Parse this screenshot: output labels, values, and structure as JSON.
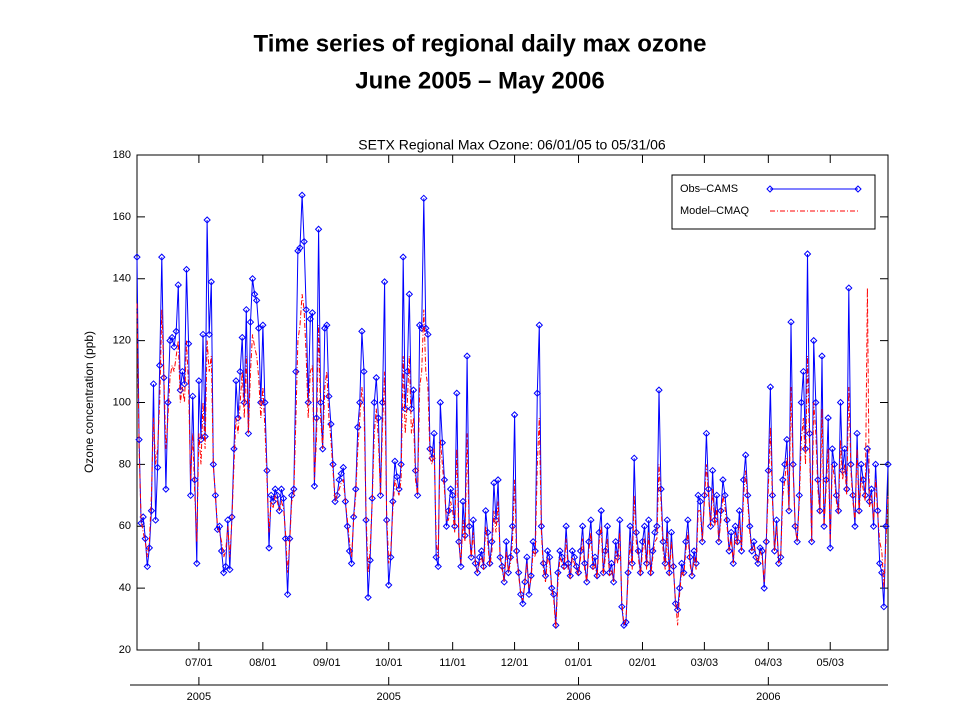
{
  "chart_data": {
    "type": "line",
    "title": "Time series of regional daily max ozone",
    "subtitle": "June 2005 – May 2006",
    "plot_title": "SETX Regional Max Ozone: 06/01/05 to 05/31/06",
    "ylabel": "Ozone concentration (ppb)",
    "ylim": [
      20,
      180
    ],
    "yticks": [
      20,
      40,
      60,
      80,
      100,
      120,
      140,
      160,
      180
    ],
    "xlim": [
      "2005-06-01",
      "2006-05-31"
    ],
    "xticks": [
      {
        "value": "2005-07-01",
        "label": "07/01"
      },
      {
        "value": "2005-08-01",
        "label": "08/01"
      },
      {
        "value": "2005-09-01",
        "label": "09/01"
      },
      {
        "value": "2005-10-01",
        "label": "10/01"
      },
      {
        "value": "2005-11-01",
        "label": "11/01"
      },
      {
        "value": "2005-12-01",
        "label": "12/01"
      },
      {
        "value": "2006-01-01",
        "label": "01/01"
      },
      {
        "value": "2006-02-01",
        "label": "02/01"
      },
      {
        "value": "2006-03-03",
        "label": "03/03"
      },
      {
        "value": "2006-04-03",
        "label": "04/03"
      },
      {
        "value": "2006-05-03",
        "label": "05/03"
      }
    ],
    "year_ticks": [
      {
        "value": "2005-07-01",
        "label": "2005"
      },
      {
        "value": "2005-10-01",
        "label": "2005"
      },
      {
        "value": "2006-01-01",
        "label": "2006"
      },
      {
        "value": "2006-04-03",
        "label": "2006"
      }
    ],
    "legend": "upper right",
    "x": [
      "2005-06-01",
      "2005-06-02",
      "2005-06-03",
      "2005-06-04",
      "2005-06-05",
      "2005-06-06",
      "2005-06-07",
      "2005-06-08",
      "2005-06-09",
      "2005-06-10",
      "2005-06-11",
      "2005-06-12",
      "2005-06-13",
      "2005-06-14",
      "2005-06-15",
      "2005-06-16",
      "2005-06-17",
      "2005-06-18",
      "2005-06-19",
      "2005-06-20",
      "2005-06-21",
      "2005-06-22",
      "2005-06-23",
      "2005-06-24",
      "2005-06-25",
      "2005-06-26",
      "2005-06-27",
      "2005-06-28",
      "2005-06-29",
      "2005-06-30",
      "2005-07-01",
      "2005-07-02",
      "2005-07-03",
      "2005-07-04",
      "2005-07-05",
      "2005-07-06",
      "2005-07-07",
      "2005-07-08",
      "2005-07-09",
      "2005-07-10",
      "2005-07-11",
      "2005-07-12",
      "2005-07-13",
      "2005-07-14",
      "2005-07-15",
      "2005-07-16",
      "2005-07-17",
      "2005-07-18",
      "2005-07-19",
      "2005-07-20",
      "2005-07-21",
      "2005-07-22",
      "2005-07-23",
      "2005-07-24",
      "2005-07-25",
      "2005-07-26",
      "2005-07-27",
      "2005-07-28",
      "2005-07-29",
      "2005-07-30",
      "2005-07-31",
      "2005-08-01",
      "2005-08-02",
      "2005-08-03",
      "2005-08-04",
      "2005-08-05",
      "2005-08-06",
      "2005-08-07",
      "2005-08-08",
      "2005-08-09",
      "2005-08-10",
      "2005-08-11",
      "2005-08-12",
      "2005-08-13",
      "2005-08-14",
      "2005-08-15",
      "2005-08-16",
      "2005-08-17",
      "2005-08-18",
      "2005-08-19",
      "2005-08-20",
      "2005-08-21",
      "2005-08-22",
      "2005-08-23",
      "2005-08-24",
      "2005-08-25",
      "2005-08-26",
      "2005-08-27",
      "2005-08-28",
      "2005-08-29",
      "2005-08-30",
      "2005-08-31",
      "2005-09-01",
      "2005-09-02",
      "2005-09-03",
      "2005-09-04",
      "2005-09-05",
      "2005-09-06",
      "2005-09-07",
      "2005-09-08",
      "2005-09-09",
      "2005-09-10",
      "2005-09-11",
      "2005-09-12",
      "2005-09-13",
      "2005-09-14",
      "2005-09-15",
      "2005-09-16",
      "2005-09-17",
      "2005-09-18",
      "2005-09-19",
      "2005-09-20",
      "2005-09-21",
      "2005-09-22",
      "2005-09-23",
      "2005-09-24",
      "2005-09-25",
      "2005-09-26",
      "2005-09-27",
      "2005-09-28",
      "2005-09-29",
      "2005-09-30",
      "2005-10-01",
      "2005-10-02",
      "2005-10-03",
      "2005-10-04",
      "2005-10-05",
      "2005-10-06",
      "2005-10-07",
      "2005-10-08",
      "2005-10-09",
      "2005-10-10",
      "2005-10-11",
      "2005-10-12",
      "2005-10-13",
      "2005-10-14",
      "2005-10-15",
      "2005-10-16",
      "2005-10-17",
      "2005-10-18",
      "2005-10-19",
      "2005-10-20",
      "2005-10-21",
      "2005-10-22",
      "2005-10-23",
      "2005-10-24",
      "2005-10-25",
      "2005-10-26",
      "2005-10-27",
      "2005-10-28",
      "2005-10-29",
      "2005-10-30",
      "2005-10-31",
      "2005-11-01",
      "2005-11-02",
      "2005-11-03",
      "2005-11-04",
      "2005-11-05",
      "2005-11-06",
      "2005-11-07",
      "2005-11-08",
      "2005-11-09",
      "2005-11-10",
      "2005-11-11",
      "2005-11-12",
      "2005-11-13",
      "2005-11-14",
      "2005-11-15",
      "2005-11-16",
      "2005-11-17",
      "2005-11-18",
      "2005-11-19",
      "2005-11-20",
      "2005-11-21",
      "2005-11-22",
      "2005-11-23",
      "2005-11-24",
      "2005-11-25",
      "2005-11-26",
      "2005-11-27",
      "2005-11-28",
      "2005-11-29",
      "2005-11-30",
      "2005-12-01",
      "2005-12-02",
      "2005-12-03",
      "2005-12-04",
      "2005-12-05",
      "2005-12-06",
      "2005-12-07",
      "2005-12-08",
      "2005-12-09",
      "2005-12-10",
      "2005-12-11",
      "2005-12-12",
      "2005-12-13",
      "2005-12-14",
      "2005-12-15",
      "2005-12-16",
      "2005-12-17",
      "2005-12-18",
      "2005-12-19",
      "2005-12-20",
      "2005-12-21",
      "2005-12-22",
      "2005-12-23",
      "2005-12-24",
      "2005-12-25",
      "2005-12-26",
      "2005-12-27",
      "2005-12-28",
      "2005-12-29",
      "2005-12-30",
      "2005-12-31",
      "2006-01-01",
      "2006-01-02",
      "2006-01-03",
      "2006-01-04",
      "2006-01-05",
      "2006-01-06",
      "2006-01-07",
      "2006-01-08",
      "2006-01-09",
      "2006-01-10",
      "2006-01-11",
      "2006-01-12",
      "2006-01-13",
      "2006-01-14",
      "2006-01-15",
      "2006-01-16",
      "2006-01-17",
      "2006-01-18",
      "2006-01-19",
      "2006-01-20",
      "2006-01-21",
      "2006-01-22",
      "2006-01-23",
      "2006-01-24",
      "2006-01-25",
      "2006-01-26",
      "2006-01-27",
      "2006-01-28",
      "2006-01-29",
      "2006-01-30",
      "2006-01-31",
      "2006-02-01",
      "2006-02-02",
      "2006-02-03",
      "2006-02-04",
      "2006-02-05",
      "2006-02-06",
      "2006-02-07",
      "2006-02-08",
      "2006-02-09",
      "2006-02-10",
      "2006-02-11",
      "2006-02-12",
      "2006-02-13",
      "2006-02-14",
      "2006-02-15",
      "2006-02-16",
      "2006-02-17",
      "2006-02-18",
      "2006-02-19",
      "2006-02-20",
      "2006-02-21",
      "2006-02-22",
      "2006-02-23",
      "2006-02-24",
      "2006-02-25",
      "2006-02-26",
      "2006-02-27",
      "2006-02-28",
      "2006-03-01",
      "2006-03-02",
      "2006-03-03",
      "2006-03-04",
      "2006-03-05",
      "2006-03-06",
      "2006-03-07",
      "2006-03-08",
      "2006-03-09",
      "2006-03-10",
      "2006-03-11",
      "2006-03-12",
      "2006-03-13",
      "2006-03-14",
      "2006-03-15",
      "2006-03-16",
      "2006-03-17",
      "2006-03-18",
      "2006-03-19",
      "2006-03-20",
      "2006-03-21",
      "2006-03-22",
      "2006-03-23",
      "2006-03-24",
      "2006-03-25",
      "2006-03-26",
      "2006-03-27",
      "2006-03-28",
      "2006-03-29",
      "2006-03-30",
      "2006-03-31",
      "2006-04-01",
      "2006-04-02",
      "2006-04-03",
      "2006-04-04",
      "2006-04-05",
      "2006-04-06",
      "2006-04-07",
      "2006-04-08",
      "2006-04-09",
      "2006-04-10",
      "2006-04-11",
      "2006-04-12",
      "2006-04-13",
      "2006-04-14",
      "2006-04-15",
      "2006-04-16",
      "2006-04-17",
      "2006-04-18",
      "2006-04-19",
      "2006-04-20",
      "2006-04-21",
      "2006-04-22",
      "2006-04-23",
      "2006-04-24",
      "2006-04-25",
      "2006-04-26",
      "2006-04-27",
      "2006-04-28",
      "2006-04-29",
      "2006-04-30",
      "2006-05-01",
      "2006-05-02",
      "2006-05-03",
      "2006-05-04",
      "2006-05-05",
      "2006-05-06",
      "2006-05-07",
      "2006-05-08",
      "2006-05-09",
      "2006-05-10",
      "2006-05-11",
      "2006-05-12",
      "2006-05-13",
      "2006-05-14",
      "2006-05-15",
      "2006-05-16",
      "2006-05-17",
      "2006-05-18",
      "2006-05-19",
      "2006-05-20",
      "2006-05-21",
      "2006-05-22",
      "2006-05-23",
      "2006-05-24",
      "2006-05-25",
      "2006-05-26",
      "2006-05-27",
      "2006-05-28",
      "2006-05-29",
      "2006-05-30",
      "2006-05-31"
    ],
    "series": [
      {
        "name": "Obs–CAMS",
        "color": "#0000ff",
        "marker": "diamond",
        "values": [
          147,
          88,
          61,
          63,
          56,
          47,
          53,
          65,
          106,
          62,
          79,
          112,
          147,
          108,
          72,
          100,
          120,
          121,
          118,
          123,
          138,
          104,
          110,
          106,
          143,
          119,
          70,
          102,
          75,
          48,
          107,
          88,
          122,
          89,
          159,
          122,
          139,
          80,
          70,
          59,
          60,
          52,
          45,
          47,
          62,
          46,
          63,
          85,
          107,
          95,
          110,
          121,
          100,
          130,
          90,
          126,
          140,
          135,
          133,
          124,
          100,
          125,
          100,
          78,
          53,
          70,
          68,
          72,
          70,
          65,
          72,
          69,
          56,
          38,
          56,
          70,
          72,
          110,
          149,
          150,
          167,
          152,
          130,
          100,
          127,
          129,
          73,
          95,
          156,
          100,
          85,
          124,
          125,
          102,
          93,
          80,
          68,
          70,
          75,
          77,
          79,
          68,
          60,
          52,
          48,
          63,
          72,
          92,
          100,
          123,
          110,
          62,
          37,
          49,
          69,
          100,
          108,
          95,
          70,
          100,
          139,
          62,
          41,
          50,
          68,
          81,
          76,
          72,
          80,
          147,
          98,
          110,
          135,
          98,
          104,
          78,
          70,
          125,
          124,
          166,
          124,
          122,
          85,
          82,
          90,
          50,
          47,
          100,
          87,
          75,
          60,
          65,
          72,
          70,
          60,
          103,
          55,
          47,
          68,
          57,
          115,
          60,
          50,
          62,
          48,
          45,
          50,
          52,
          47,
          65,
          58,
          48,
          55,
          74,
          62,
          75,
          50,
          47,
          42,
          55,
          45,
          50,
          60,
          96,
          52,
          45,
          38,
          35,
          42,
          50,
          38,
          44,
          55,
          52,
          103,
          125,
          60,
          48,
          44,
          52,
          50,
          40,
          38,
          28,
          45,
          52,
          50,
          47,
          60,
          48,
          44,
          52,
          50,
          47,
          45,
          52,
          60,
          48,
          42,
          55,
          62,
          47,
          50,
          44,
          58,
          65,
          45,
          52,
          60,
          45,
          48,
          42,
          55,
          50,
          62,
          34,
          28,
          29,
          45,
          60,
          48,
          82,
          58,
          52,
          45,
          55,
          60,
          48,
          62,
          45,
          52,
          58,
          60,
          104,
          72,
          55,
          48,
          62,
          45,
          58,
          47,
          35,
          33,
          40,
          48,
          45,
          55,
          62,
          50,
          44,
          52,
          48,
          70,
          68,
          55,
          70,
          90,
          72,
          60,
          78,
          62,
          70,
          55,
          65,
          75,
          70,
          62,
          52,
          58,
          48,
          60,
          55,
          65,
          52,
          75,
          83,
          70,
          60,
          52,
          55,
          50,
          48,
          53,
          52,
          40,
          55,
          78,
          105,
          70,
          52,
          62,
          48,
          50,
          75,
          80,
          88,
          65,
          126,
          80,
          60,
          55,
          70,
          100,
          110,
          85,
          148,
          90,
          55,
          120,
          100,
          75,
          65,
          115,
          60,
          75,
          95,
          53,
          85,
          80,
          70,
          65,
          100,
          78,
          85,
          72,
          137,
          80,
          70,
          60,
          90,
          65,
          80,
          75,
          70,
          85,
          68,
          72,
          60,
          80,
          65,
          48,
          45,
          34,
          60,
          80
        ]
      },
      {
        "name": "Model–CMAQ",
        "color": "#ff0000",
        "dash": "dash-dot",
        "values": [
          132,
          85,
          62,
          58,
          55,
          50,
          55,
          70,
          95,
          80,
          85,
          100,
          130,
          110,
          85,
          95,
          108,
          112,
          110,
          115,
          120,
          100,
          105,
          100,
          120,
          105,
          75,
          90,
          70,
          55,
          90,
          80,
          100,
          85,
          120,
          110,
          115,
          80,
          70,
          60,
          58,
          55,
          50,
          52,
          60,
          50,
          62,
          80,
          95,
          90,
          100,
          110,
          95,
          115,
          90,
          110,
          122,
          118,
          115,
          108,
          95,
          105,
          92,
          75,
          58,
          68,
          66,
          70,
          68,
          65,
          68,
          66,
          58,
          45,
          55,
          68,
          70,
          95,
          120,
          125,
          135,
          130,
          115,
          95,
          110,
          112,
          75,
          88,
          125,
          95,
          85,
          105,
          110,
          95,
          88,
          78,
          68,
          70,
          72,
          74,
          75,
          68,
          62,
          55,
          50,
          62,
          70,
          85,
          95,
          105,
          98,
          65,
          45,
          52,
          68,
          90,
          98,
          88,
          70,
          92,
          110,
          65,
          48,
          52,
          65,
          75,
          72,
          70,
          75,
          115,
          90,
          100,
          115,
          90,
          95,
          75,
          70,
          105,
          110,
          130,
          110,
          105,
          82,
          80,
          85,
          55,
          50,
          88,
          80,
          72,
          62,
          62,
          68,
          65,
          58,
          85,
          55,
          48,
          62,
          55,
          90,
          58,
          50,
          58,
          48,
          45,
          48,
          50,
          46,
          60,
          55,
          47,
          52,
          65,
          58,
          68,
          50,
          46,
          42,
          52,
          45,
          48,
          55,
          75,
          50,
          44,
          38,
          36,
          42,
          48,
          40,
          43,
          52,
          50,
          80,
          95,
          58,
          46,
          42,
          50,
          48,
          40,
          36,
          27,
          42,
          50,
          48,
          46,
          56,
          46,
          43,
          50,
          48,
          46,
          44,
          50,
          56,
          46,
          42,
          52,
          58,
          46,
          48,
          43,
          55,
          60,
          44,
          50,
          56,
          44,
          46,
          42,
          52,
          48,
          58,
          36,
          28,
          30,
          43,
          55,
          46,
          70,
          55,
          50,
          44,
          52,
          56,
          46,
          58,
          44,
          50,
          55,
          56,
          80,
          68,
          52,
          46,
          58,
          44,
          55,
          46,
          36,
          28,
          38,
          46,
          44,
          52,
          58,
          48,
          44,
          50,
          46,
          65,
          65,
          55,
          68,
          80,
          70,
          60,
          72,
          60,
          66,
          55,
          62,
          70,
          66,
          60,
          52,
          56,
          48,
          58,
          54,
          62,
          52,
          70,
          78,
          68,
          58,
          52,
          54,
          50,
          48,
          52,
          50,
          42,
          55,
          72,
          92,
          68,
          52,
          60,
          48,
          50,
          70,
          75,
          82,
          65,
          105,
          78,
          60,
          55,
          68,
          88,
          95,
          80,
          115,
          85,
          55,
          100,
          90,
          72,
          64,
          98,
          60,
          72,
          85,
          55,
          80,
          76,
          68,
          64,
          88,
          75,
          80,
          70,
          105,
          78,
          68,
          62,
          85,
          64,
          76,
          72,
          68,
          137,
          66,
          70,
          62,
          75,
          64,
          55,
          52,
          40,
          55,
          70
        ]
      }
    ]
  }
}
